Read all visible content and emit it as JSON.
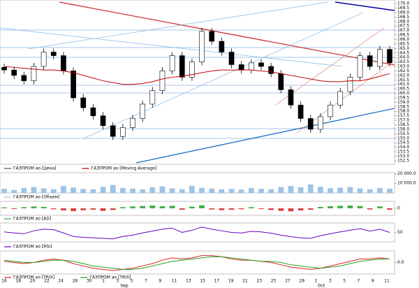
{
  "chart_data": [
    {
      "type": "candlestick",
      "name": "ГАЗПРОМ ао [Цена]",
      "color_up": "#ffffff",
      "color_down": "#000000",
      "open": [
        162.9,
        162.6,
        162.0,
        161.4,
        163.0,
        164.6,
        164.2,
        162.5,
        159.5,
        158.4,
        157.5,
        156.4,
        155.2,
        156.2,
        157.2,
        158.8,
        160.3,
        162.5,
        164.2,
        161.8,
        163.5,
        166.9,
        165.8,
        164.6,
        163.2,
        162.6,
        163.4,
        163.0,
        162.2,
        160.4,
        158.7,
        157.2,
        156.0,
        157.4,
        158.7,
        160.2,
        161.8,
        164.2,
        163.0,
        164.9
      ],
      "high": [
        163.3,
        163.0,
        162.4,
        163.4,
        165.0,
        165.0,
        164.6,
        162.9,
        159.9,
        158.8,
        157.9,
        156.8,
        156.6,
        157.6,
        159.2,
        160.7,
        162.9,
        164.6,
        164.6,
        163.9,
        167.3,
        167.3,
        166.2,
        165.0,
        163.6,
        163.8,
        163.8,
        163.4,
        162.6,
        160.8,
        159.1,
        157.6,
        157.8,
        159.1,
        160.6,
        162.2,
        164.6,
        164.6,
        165.3,
        165.3
      ],
      "low": [
        162.2,
        161.6,
        161.0,
        161.0,
        162.6,
        163.8,
        162.1,
        159.1,
        158.0,
        157.1,
        156.0,
        154.8,
        154.8,
        155.8,
        156.8,
        158.4,
        159.9,
        162.1,
        161.4,
        161.4,
        163.1,
        165.4,
        164.2,
        162.8,
        162.2,
        162.2,
        162.6,
        161.8,
        160.0,
        158.3,
        156.8,
        155.6,
        155.6,
        157.0,
        158.3,
        159.8,
        161.4,
        162.6,
        162.6,
        163.0
      ],
      "close": [
        162.6,
        162.0,
        161.4,
        163.0,
        164.6,
        164.2,
        162.5,
        159.5,
        158.4,
        157.5,
        156.4,
        155.2,
        156.2,
        157.2,
        158.8,
        160.3,
        162.5,
        164.2,
        161.8,
        163.5,
        166.9,
        165.8,
        164.6,
        163.2,
        162.6,
        163.4,
        163.0,
        162.2,
        160.4,
        158.7,
        157.2,
        156.0,
        157.4,
        158.7,
        160.2,
        161.8,
        164.2,
        163.0,
        164.9,
        163.4
      ],
      "series": [
        {
          "name": "ГАЗПРОМ ао [Moving Average]",
          "color": "#c00000",
          "values": [
            163.0,
            162.9,
            162.8,
            162.7,
            162.6,
            162.6,
            162.5,
            162.3,
            162.0,
            161.7,
            161.4,
            161.2,
            161.0,
            161.0,
            161.1,
            161.3,
            161.6,
            161.8,
            161.9,
            162.1,
            162.3,
            162.5,
            162.6,
            162.6,
            162.6,
            162.6,
            162.5,
            162.4,
            162.2,
            162.0,
            161.8,
            161.6,
            161.4,
            161.3,
            161.3,
            161.4,
            161.4,
            161.6,
            161.9,
            162.2
          ]
        }
      ],
      "ylim": [
        152.1,
        170.4
      ],
      "yticks": [
        {
          "value": 170,
          "label": "170.0"
        },
        {
          "value": 169.5,
          "label": "169.5"
        },
        {
          "value": 169,
          "label": "169.0"
        },
        {
          "value": 168.5,
          "label": "168.5"
        },
        {
          "value": 168,
          "label": "168.0"
        },
        {
          "value": 167.5,
          "label": "167.5"
        },
        {
          "value": 167,
          "label": "167.0"
        },
        {
          "value": 166.5,
          "label": "166.5"
        },
        {
          "value": 166,
          "label": "166.0"
        },
        {
          "value": 165.5,
          "label": "165.5"
        },
        {
          "value": 165,
          "label": "165.0"
        },
        {
          "value": 164.5,
          "label": "164.5"
        },
        {
          "value": 164,
          "label": "164.0"
        },
        {
          "value": 163.5,
          "label": "163.5"
        },
        {
          "value": 163,
          "label": "163.0"
        },
        {
          "value": 162.5,
          "label": "162.5"
        },
        {
          "value": 162,
          "label": "162.0"
        },
        {
          "value": 161.5,
          "label": "161.5"
        },
        {
          "value": 161,
          "label": "161.0"
        },
        {
          "value": 160.5,
          "label": "160.5"
        },
        {
          "value": 160,
          "label": "160.0"
        },
        {
          "value": 159.5,
          "label": "159.5"
        },
        {
          "value": 159,
          "label": "159.0"
        },
        {
          "value": 158.5,
          "label": "158.5"
        },
        {
          "value": 158,
          "label": "158.0"
        },
        {
          "value": 157.5,
          "label": "157.5"
        },
        {
          "value": 157,
          "label": "157.0"
        },
        {
          "value": 156.5,
          "label": "156.5"
        },
        {
          "value": 156,
          "label": "156.0"
        },
        {
          "value": 155.5,
          "label": "155.5"
        },
        {
          "value": 155,
          "label": "155.0"
        },
        {
          "value": 154.5,
          "label": "154.5"
        },
        {
          "value": 154,
          "label": "154.0"
        },
        {
          "value": 153.5,
          "label": "153.5"
        },
        {
          "value": 153,
          "label": "153.0"
        },
        {
          "value": 152.5,
          "label": "152.5"
        }
      ]
    },
    {
      "type": "bar",
      "name": "ГАЗПРОМ ао [Объем]",
      "color": "#9ec3e6",
      "values": [
        4200,
        3100,
        5200,
        6100,
        4800,
        3900,
        7200,
        5600,
        4100,
        3800,
        6300,
        8200,
        5100,
        4400,
        3600,
        5900,
        6800,
        4700,
        3900,
        7400,
        5300,
        4600,
        3800,
        4200,
        3500,
        5100,
        4300,
        3900,
        6200,
        7100,
        5800,
        8800,
        6400,
        4900,
        5500,
        6100,
        4700,
        3800,
        5200,
        4400
      ],
      "ylim": [
        0,
        21000
      ],
      "yticks": [
        {
          "value": 20000,
          "label": "20 000.0"
        },
        {
          "value": 10000,
          "label": "10 000.0"
        }
      ]
    },
    {
      "type": "bar",
      "name": "ГАЗПРОМ ао [AD]",
      "color_up": "#44b044",
      "color_down": "#e04040",
      "values": [
        0.4,
        -0.3,
        0.5,
        0.8,
        0.6,
        -0.4,
        -0.9,
        -1.2,
        -0.8,
        -0.6,
        -1.1,
        -0.7,
        0.5,
        0.8,
        1.0,
        1.2,
        0.9,
        1.1,
        -0.6,
        0.7,
        1.3,
        -0.5,
        -0.8,
        -0.6,
        -0.4,
        0.5,
        -0.3,
        -0.7,
        -1.1,
        -1.3,
        -0.9,
        -0.6,
        0.6,
        0.9,
        1.1,
        1.2,
        1.0,
        -0.5,
        0.8,
        -0.6
      ],
      "ylim": [
        -3,
        3
      ],
      "yticks": [
        0
      ]
    },
    {
      "type": "line",
      "series": [
        {
          "name": "ГАЗПРОМ ао [RSI]",
          "color": "#6a00c0",
          "values": [
            52,
            48,
            45,
            56,
            62,
            60,
            48,
            35,
            32,
            30,
            28,
            26,
            35,
            40,
            48,
            55,
            62,
            66,
            50,
            58,
            70,
            62,
            56,
            50,
            48,
            54,
            52,
            47,
            40,
            34,
            30,
            28,
            38,
            45,
            52,
            58,
            64,
            55,
            62,
            50
          ]
        }
      ],
      "ylim": [
        15,
        85
      ],
      "yticks": [
        50
      ]
    },
    {
      "type": "line",
      "series": [
        {
          "name": "ГАЗПРОМ ао [TRIX]",
          "color": "#e02020",
          "values": [
            0.1,
            0.0,
            -0.1,
            0.0,
            0.2,
            0.3,
            0.2,
            -0.1,
            -0.3,
            -0.5,
            -0.6,
            -0.7,
            -0.6,
            -0.5,
            -0.3,
            -0.1,
            0.2,
            0.4,
            0.3,
            0.4,
            0.6,
            0.6,
            0.5,
            0.3,
            0.2,
            0.2,
            0.1,
            0.0,
            -0.2,
            -0.4,
            -0.5,
            -0.6,
            -0.5,
            -0.3,
            -0.1,
            0.1,
            0.3,
            0.3,
            0.4,
            0.3
          ]
        },
        {
          "name": "ГАЗПРОМ ао [TRIX]",
          "color": "#20a020",
          "values": [
            0.2,
            0.1,
            0.0,
            0.0,
            0.1,
            0.2,
            0.2,
            0.1,
            -0.1,
            -0.3,
            -0.4,
            -0.5,
            -0.6,
            -0.6,
            -0.5,
            -0.3,
            -0.1,
            0.1,
            0.2,
            0.3,
            0.4,
            0.5,
            0.5,
            0.4,
            0.3,
            0.2,
            0.1,
            0.1,
            0.0,
            -0.2,
            -0.3,
            -0.4,
            -0.5,
            -0.4,
            -0.3,
            -0.1,
            0.1,
            0.2,
            0.3,
            0.3
          ]
        }
      ],
      "ylim": [
        -1,
        1
      ],
      "yticks": [
        {
          "value": 0,
          "label": "0.0"
        }
      ]
    }
  ],
  "x_axis": {
    "ticks": [
      "16",
      "18",
      "20",
      "22",
      "24",
      "26",
      "30",
      "1",
      "3",
      "5",
      "7",
      "9",
      "11",
      "13",
      "15",
      "17",
      "19",
      "21",
      "23",
      "25",
      "27",
      "29",
      "1",
      "3",
      "5",
      "7",
      "9",
      "11"
    ],
    "months": [
      "Sep",
      "Oct"
    ]
  }
}
